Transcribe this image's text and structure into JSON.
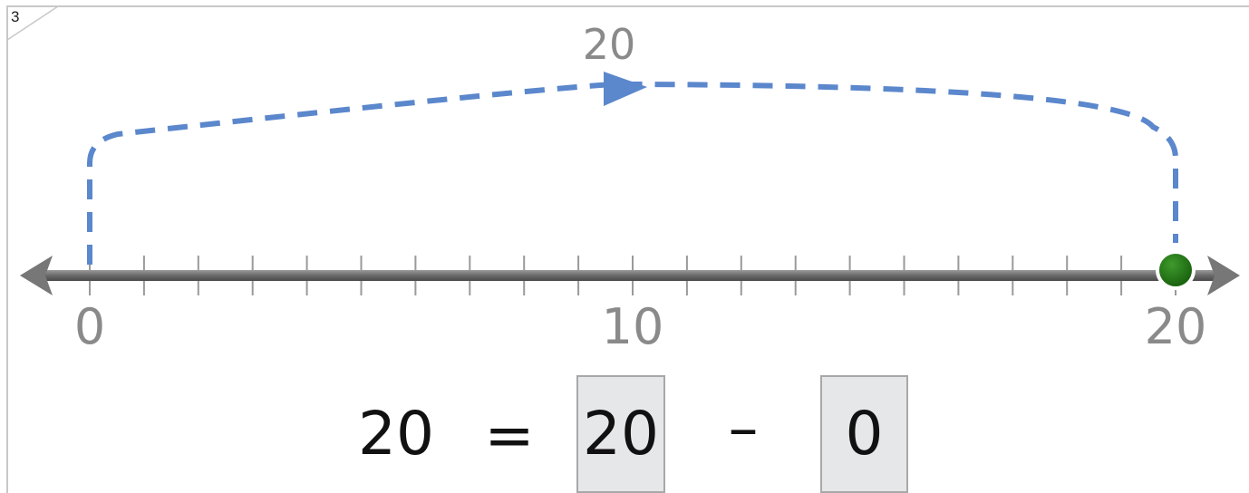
{
  "problem_number": "3",
  "number_line": {
    "min": 0,
    "max": 20,
    "tick_step": 1,
    "labels": [
      "0",
      "10",
      "20"
    ],
    "marker_value": 20,
    "marker_color": "#1f6b12"
  },
  "jump": {
    "from": 0,
    "to": 20,
    "label": "20",
    "color": "#5b87cc"
  },
  "equation": {
    "left": "20",
    "equals": "=",
    "box1": "20",
    "operator": "–",
    "box2": "0"
  }
}
